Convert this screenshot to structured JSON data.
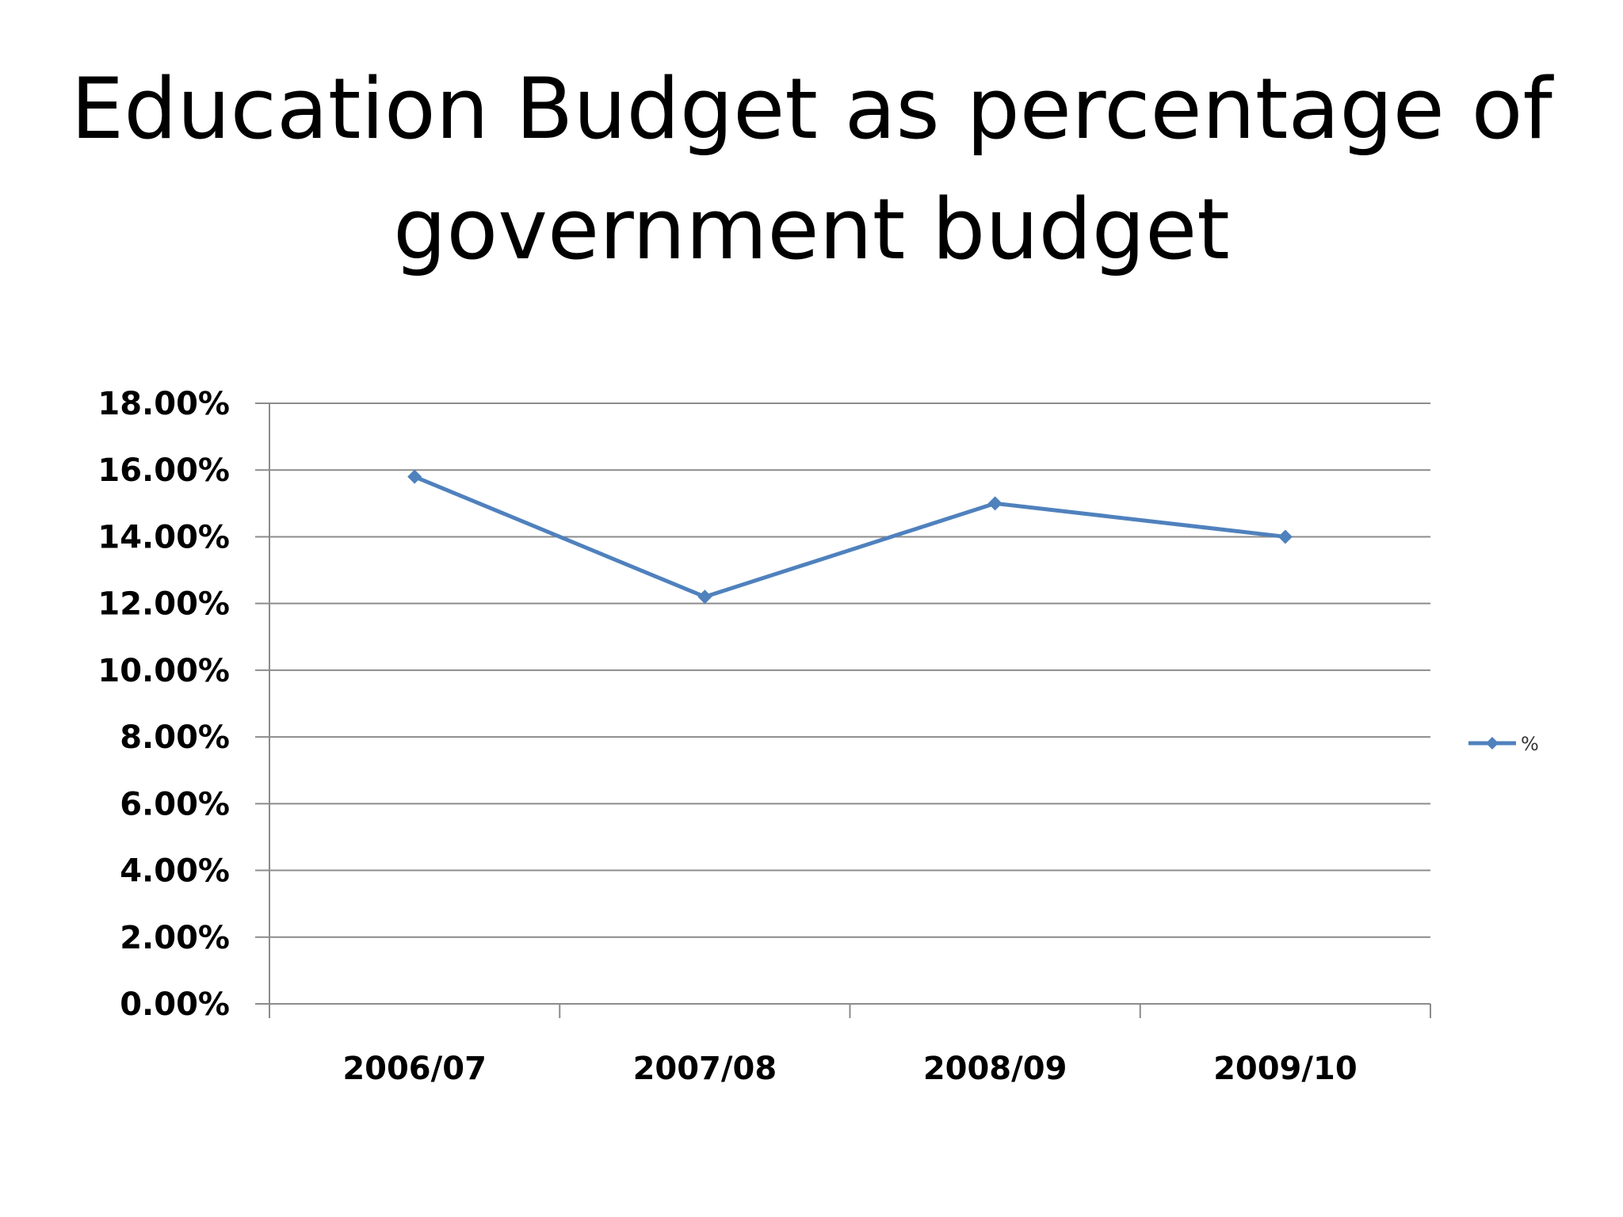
{
  "title_lines": [
    "Education Budget as percentage of",
    "government budget"
  ],
  "chart_data": {
    "type": "line",
    "categories": [
      "2006/07",
      "2007/08",
      "2008/09",
      "2009/10"
    ],
    "series": [
      {
        "name": "%",
        "values": [
          15.8,
          12.2,
          15.0,
          14.0
        ],
        "color": "#4F81BD",
        "marker": "diamond"
      }
    ],
    "ylim": [
      0,
      18
    ],
    "yticks": [
      "0.00%",
      "2.00%",
      "4.00%",
      "6.00%",
      "8.00%",
      "10.00%",
      "12.00%",
      "14.00%",
      "16.00%",
      "18.00%"
    ],
    "grid": true,
    "legend_position": "right"
  }
}
